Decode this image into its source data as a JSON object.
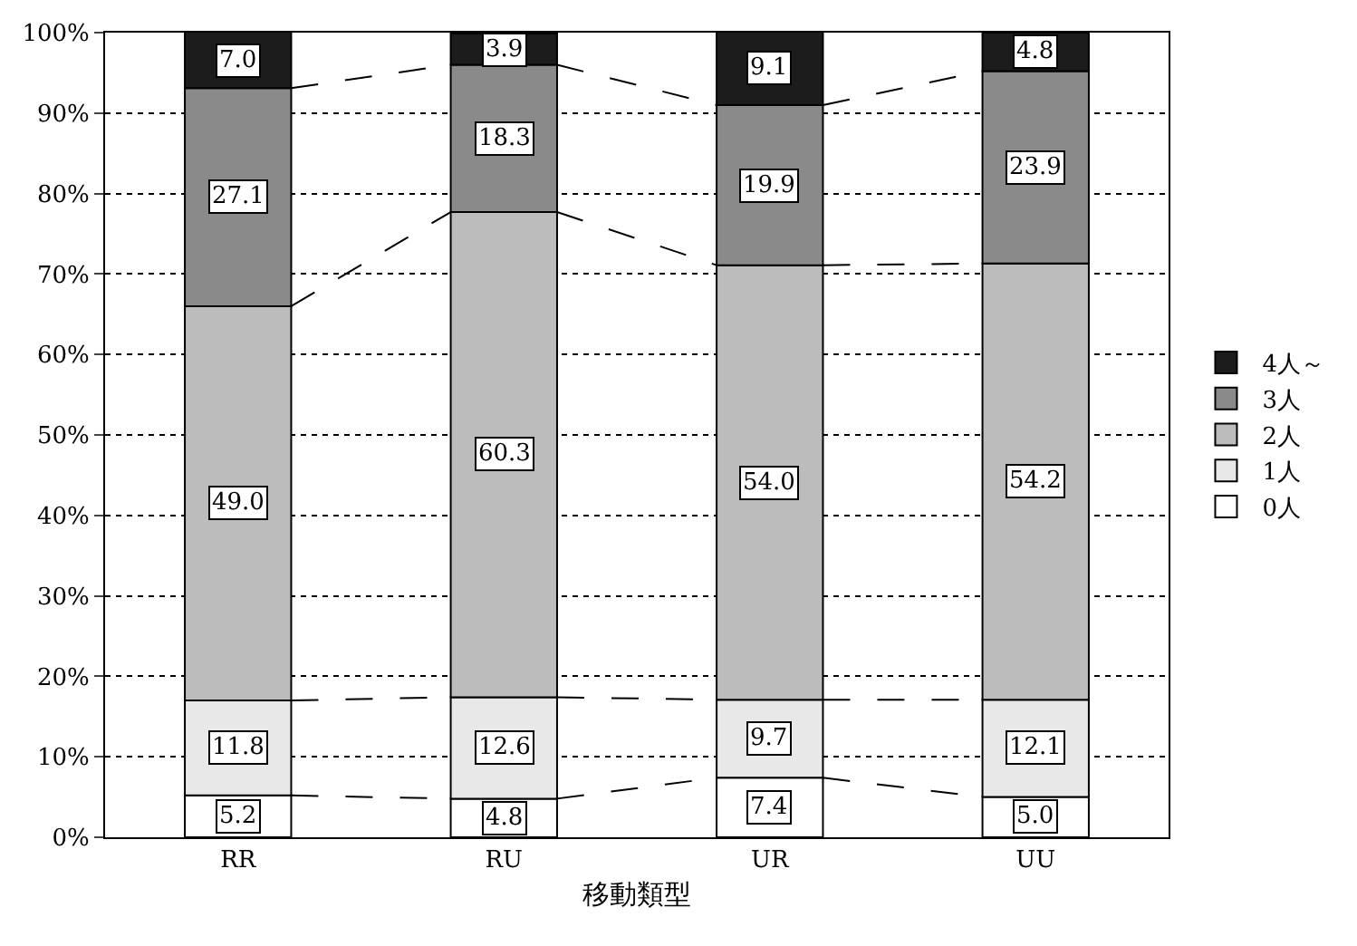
{
  "chart_data": {
    "type": "bar",
    "stacked": true,
    "xlabel": "移動類型",
    "categories": [
      "RR",
      "RU",
      "UR",
      "UU"
    ],
    "series": [
      {
        "name": "0人",
        "color": "#ffffff",
        "values": [
          5.2,
          4.8,
          7.4,
          5.0
        ],
        "value_labels": [
          "5.2",
          "4.8",
          "7.4",
          "5.0"
        ]
      },
      {
        "name": "1人",
        "color": "#e8e8e8",
        "values": [
          11.8,
          12.6,
          9.7,
          12.1
        ],
        "value_labels": [
          "11.8",
          "12.6",
          "9.7",
          "12.1"
        ]
      },
      {
        "name": "2人",
        "color": "#bcbcbc",
        "values": [
          49.0,
          60.3,
          54.0,
          54.2
        ],
        "value_labels": [
          "49.0",
          "60.3",
          "54.0",
          "54.2"
        ]
      },
      {
        "name": "3人",
        "color": "#8a8a8a",
        "values": [
          27.1,
          18.3,
          19.9,
          23.9
        ],
        "value_labels": [
          "27.1",
          "18.3",
          "19.9",
          "23.9"
        ]
      },
      {
        "name": "4人～",
        "color": "#1c1c1c",
        "values": [
          7.0,
          3.9,
          9.1,
          4.8
        ],
        "value_labels": [
          "7.0",
          "3.9",
          "9.1",
          "4.8"
        ]
      }
    ],
    "ylim": [
      0,
      100
    ],
    "yticks": [
      {
        "value": 0,
        "label": "0%"
      },
      {
        "value": 10,
        "label": "10%"
      },
      {
        "value": 20,
        "label": "20%"
      },
      {
        "value": 30,
        "label": "30%"
      },
      {
        "value": 40,
        "label": "40%"
      },
      {
        "value": 50,
        "label": "50%"
      },
      {
        "value": 60,
        "label": "60%"
      },
      {
        "value": 70,
        "label": "70%"
      },
      {
        "value": 80,
        "label": "80%"
      },
      {
        "value": 90,
        "label": "90%"
      },
      {
        "value": 100,
        "label": "100%"
      }
    ],
    "grid": "y",
    "legend": "right"
  }
}
